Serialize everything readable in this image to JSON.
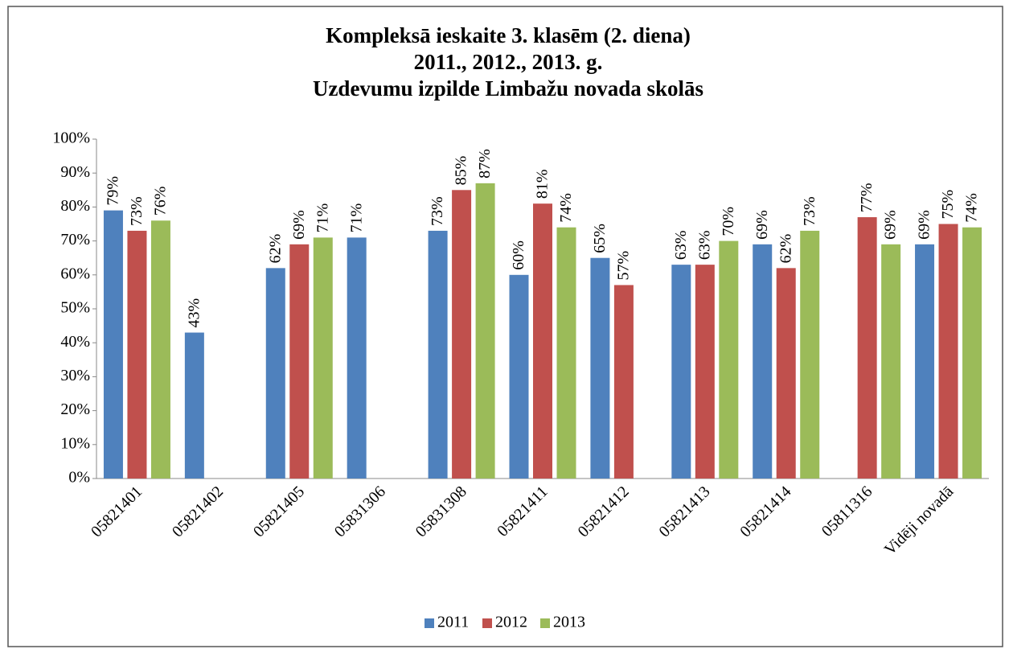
{
  "chart_data": {
    "type": "bar",
    "title": [
      "Kompleksā ieskaite 3. klasēm (2. diena)",
      "2011., 2012., 2013. g.",
      "Uzdevumu izpilde Limbažu novada skolās"
    ],
    "categories": [
      "05821401",
      "05821402",
      "05821405",
      "05831306",
      "05831308",
      "05821411",
      "05821412",
      "05821413",
      "05821414",
      "05811316",
      "Vidēji novadā"
    ],
    "series": [
      {
        "name": "2011",
        "color": "#4f81bd",
        "values": [
          79,
          43,
          62,
          71,
          73,
          60,
          65,
          63,
          69,
          null,
          69
        ],
        "value_labels": [
          "79%",
          "43%",
          "62%",
          "71%",
          "73%",
          "60%",
          "65%",
          "63%",
          "69%",
          null,
          "69%"
        ]
      },
      {
        "name": "2012",
        "color": "#c0504d",
        "values": [
          73,
          null,
          69,
          null,
          85,
          81,
          57,
          63,
          62,
          77,
          75
        ],
        "value_labels": [
          "73%",
          null,
          "69%",
          null,
          "85%",
          "81%",
          "57%",
          "63%",
          "62%",
          "77%",
          "75%"
        ]
      },
      {
        "name": "2013",
        "color": "#9bbb59",
        "values": [
          76,
          null,
          71,
          null,
          87,
          74,
          null,
          70,
          73,
          69,
          74
        ],
        "value_labels": [
          "76%",
          null,
          "71%",
          null,
          "87%",
          "74%",
          null,
          "70%",
          "73%",
          "69%",
          "74%"
        ]
      }
    ],
    "ylim": [
      0,
      100
    ],
    "yticks": [
      {
        "value": 0,
        "label": "0%"
      },
      {
        "value": 10,
        "label": "10%"
      },
      {
        "value": 20,
        "label": "20%"
      },
      {
        "value": 30,
        "label": "30%"
      },
      {
        "value": 40,
        "label": "40%"
      },
      {
        "value": 50,
        "label": "50%"
      },
      {
        "value": 60,
        "label": "60%"
      },
      {
        "value": 70,
        "label": "70%"
      },
      {
        "value": 80,
        "label": "80%"
      },
      {
        "value": 90,
        "label": "90%"
      },
      {
        "value": 100,
        "label": "100%"
      }
    ],
    "grid": false,
    "legend": "bottom"
  }
}
